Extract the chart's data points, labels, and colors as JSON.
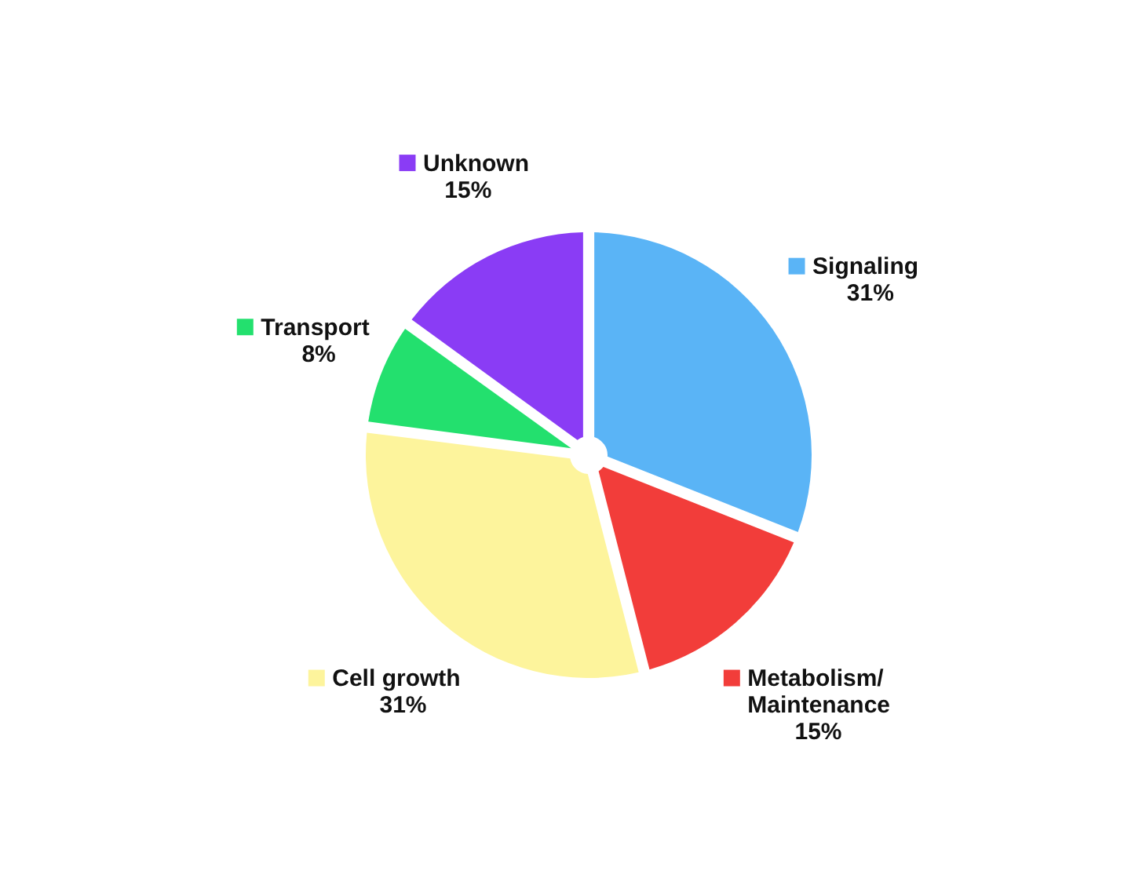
{
  "chart_data": {
    "type": "pie",
    "categories": [
      "Signaling",
      "Metabolism/Maintenance",
      "Cell growth",
      "Transport",
      "Unknown"
    ],
    "values": [
      31,
      15,
      31,
      8,
      15
    ],
    "colors": [
      "#5ab4f6",
      "#f23d3a",
      "#fdf49c",
      "#23e06e",
      "#8a3cf5"
    ],
    "value_labels": [
      "31%",
      "15%",
      "31%",
      "8%",
      "15%"
    ],
    "data_labels": true,
    "legend": "top left"
  }
}
